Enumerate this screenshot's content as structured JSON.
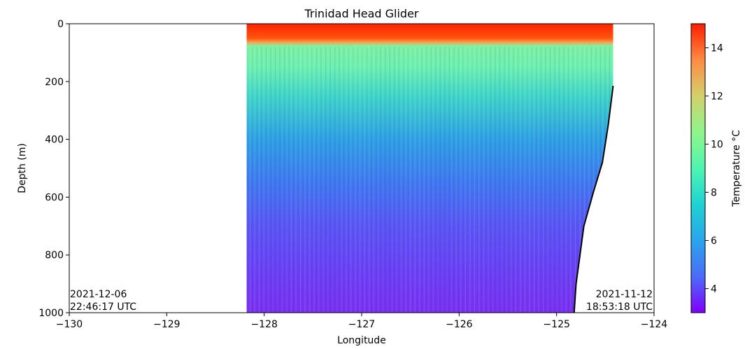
{
  "chart_data": {
    "type": "heatmap",
    "title": "Trinidad Head Glider",
    "xlabel": "Longitude",
    "ylabel": "Depth (m)",
    "colorbar_label": "Temperature °C",
    "xlim": [
      -130,
      -124
    ],
    "ylim": [
      1000,
      0
    ],
    "x_ticks": [
      -130,
      -129,
      -128,
      -127,
      -126,
      -125,
      -124
    ],
    "x_tick_labels": [
      "−130",
      "−129",
      "−128",
      "−127",
      "−126",
      "−125",
      "−124"
    ],
    "y_ticks": [
      0,
      200,
      400,
      600,
      800,
      1000
    ],
    "y_tick_labels": [
      "0",
      "200",
      "400",
      "600",
      "800",
      "1000"
    ],
    "colorbar_range": [
      3,
      15
    ],
    "colorbar_ticks": [
      4,
      6,
      8,
      10,
      12,
      14
    ],
    "colorbar_tick_labels": [
      "4",
      "6",
      "8",
      "10",
      "12",
      "14"
    ],
    "colormap": "rainbow",
    "data_extent": {
      "lon_min": -128.18,
      "lon_max": -124.42,
      "depth_max": 1000
    },
    "temperature_profile": [
      {
        "depth": 0,
        "temp": 14.2
      },
      {
        "depth": 50,
        "temp": 13.0
      },
      {
        "depth": 70,
        "temp": 9.5
      },
      {
        "depth": 100,
        "temp": 8.8
      },
      {
        "depth": 200,
        "temp": 7.8
      },
      {
        "depth": 300,
        "temp": 7.0
      },
      {
        "depth": 400,
        "temp": 6.3
      },
      {
        "depth": 500,
        "temp": 5.7
      },
      {
        "depth": 600,
        "temp": 5.1
      },
      {
        "depth": 700,
        "temp": 4.6
      },
      {
        "depth": 800,
        "temp": 4.2
      },
      {
        "depth": 900,
        "temp": 3.9
      },
      {
        "depth": 1000,
        "temp": 3.7
      }
    ],
    "seafloor_boundary": [
      {
        "lon": -124.42,
        "depth": 215
      },
      {
        "lon": -124.47,
        "depth": 350
      },
      {
        "lon": -124.53,
        "depth": 480
      },
      {
        "lon": -124.62,
        "depth": 580
      },
      {
        "lon": -124.72,
        "depth": 700
      },
      {
        "lon": -124.76,
        "depth": 800
      },
      {
        "lon": -124.8,
        "depth": 900
      },
      {
        "lon": -124.82,
        "depth": 1000
      }
    ],
    "annotations": {
      "start_date": "2021-12-06",
      "start_time": "22:46:17 UTC",
      "end_date": "2021-11-12",
      "end_time": "18:53:18 UTC"
    }
  }
}
